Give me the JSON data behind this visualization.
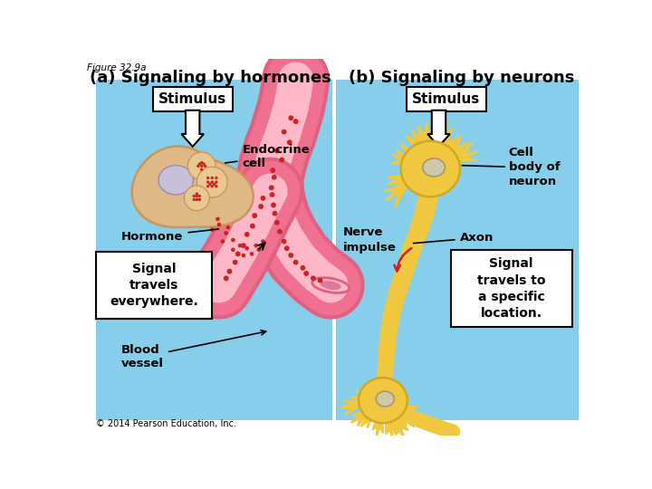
{
  "figure_label": "Figure 32.9a",
  "title_a": "(a) Signaling by hormones",
  "title_b": "(b) Signaling by neurons",
  "bg_color": "#87CEEB",
  "white": "#FFFFFF",
  "copyright": "© 2014 Pearson Education, Inc.",
  "panel_a": {
    "stimulus_box": "Stimulus",
    "endocrine_label": "Endocrine\ncell",
    "hormone_label": "Hormone",
    "signal_box": "Signal\ntravels\neverywhere.",
    "blood_label": "Blood\nvessel",
    "cell_color": "#DEB887",
    "cell_edge": "#C8965A",
    "nucleus_color": "#C8C0D8",
    "nucleus_edge": "#A090B0",
    "vesicle_bg": "#E8C890",
    "vesicle_dot": "#CC2222",
    "blood_outer": "#F07090",
    "blood_inner": "#FFB8C8",
    "blood_rim": "#E06080",
    "hormone_dot": "#CC2222"
  },
  "panel_b": {
    "stimulus_box": "Stimulus",
    "cell_body_label": "Cell\nbody of\nneuron",
    "nerve_label": "Nerve\nimpulse",
    "axon_label": "Axon",
    "signal_box": "Signal\ntravels to\na specific\nlocation.",
    "neuron_color": "#F0C840",
    "neuron_edge": "#D0A820",
    "nucleus_color": "#D0C8A8",
    "nucleus_edge": "#A09870",
    "nerve_arrow_color": "#CC2222"
  }
}
